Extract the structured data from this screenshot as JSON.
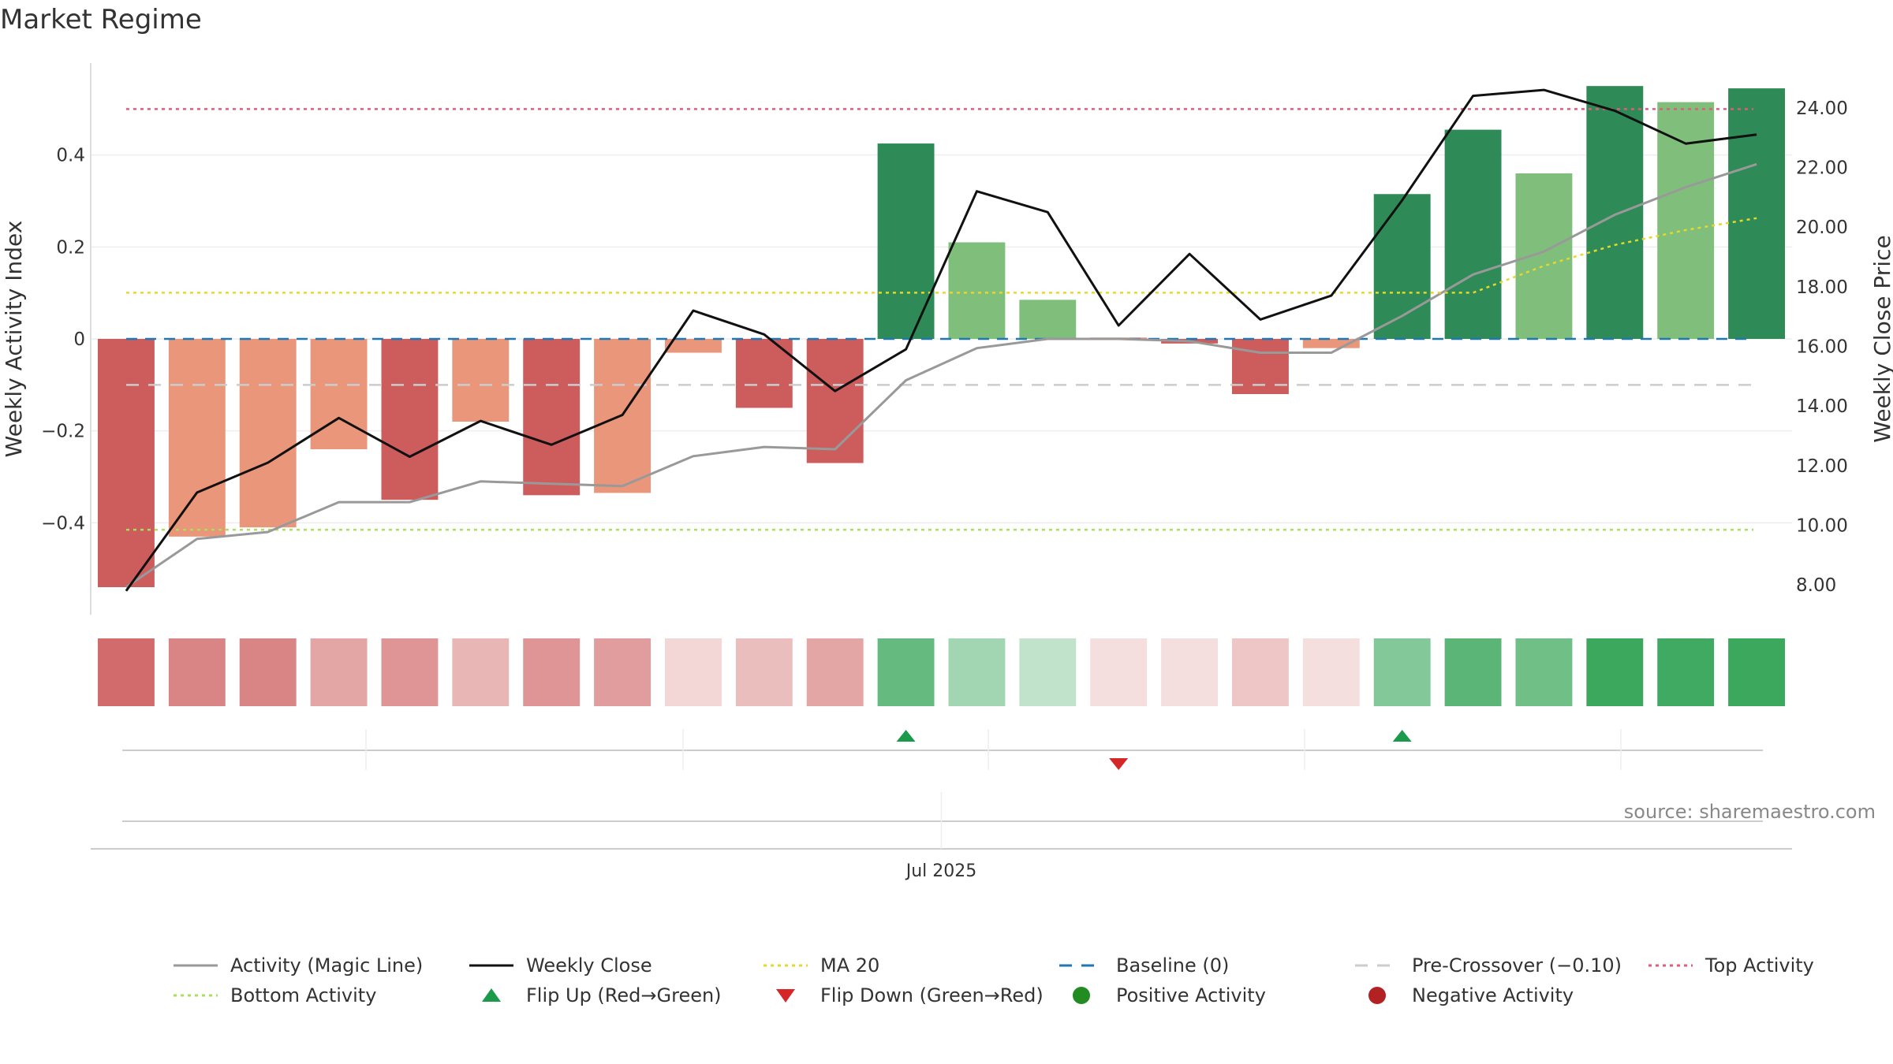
{
  "title": "Market Regime",
  "source": "source: sharemaestro.com",
  "colors": {
    "strong_green": "#2e8b57",
    "light_green": "#7fbf7b",
    "strong_red": "#cd5c5c",
    "light_red": "#e9967a",
    "magic_line": "#999999",
    "weekly_close": "#111111",
    "ma20": "#e6d72a",
    "baseline": "#1f77b4",
    "pre_crossover": "#cccccc",
    "top_activity": "#e05c7a",
    "bottom_activity": "#a8e05c",
    "flip_up": "#1a9a4a",
    "flip_down": "#d62728",
    "positive_activity": "#228b22",
    "negative_activity": "#b22222",
    "strip_green": "#31a354",
    "strip_red": "#cd5c5c"
  },
  "chart_data": {
    "type": "bar",
    "title": "Market Regime",
    "ylabel": "Weekly Activity Index",
    "y2label": "Weekly Close Price",
    "ylim": [
      -0.6,
      0.6
    ],
    "y2lim": [
      7.0,
      25.5
    ],
    "y_ticks": [
      {
        "value": 0.4,
        "label": "0.4"
      },
      {
        "value": 0.2,
        "label": "0.2"
      },
      {
        "value": 0,
        "label": "0"
      },
      {
        "value": -0.2,
        "label": "−0.2"
      },
      {
        "value": -0.4,
        "label": "−0.4"
      }
    ],
    "y2_ticks": [
      {
        "value": 24,
        "label": "24.00"
      },
      {
        "value": 22,
        "label": "22.00"
      },
      {
        "value": 20,
        "label": "20.00"
      },
      {
        "value": 18,
        "label": "18.00"
      },
      {
        "value": 16,
        "label": "16.00"
      },
      {
        "value": 14,
        "label": "14.00"
      },
      {
        "value": 12,
        "label": "12.00"
      },
      {
        "value": 10,
        "label": "10.00"
      },
      {
        "value": 8,
        "label": "8.00"
      }
    ],
    "x_tick_label": "Jul 2025",
    "x_tick_index": 12,
    "bars": [
      {
        "value": -0.54,
        "shade": "strong_red"
      },
      {
        "value": -0.43,
        "shade": "light_red"
      },
      {
        "value": -0.41,
        "shade": "light_red"
      },
      {
        "value": -0.24,
        "shade": "light_red"
      },
      {
        "value": -0.35,
        "shade": "strong_red"
      },
      {
        "value": -0.18,
        "shade": "light_red"
      },
      {
        "value": -0.34,
        "shade": "strong_red"
      },
      {
        "value": -0.335,
        "shade": "light_red"
      },
      {
        "value": -0.03,
        "shade": "light_red"
      },
      {
        "value": -0.15,
        "shade": "strong_red"
      },
      {
        "value": -0.27,
        "shade": "strong_red"
      },
      {
        "value": 0.425,
        "shade": "strong_green"
      },
      {
        "value": 0.21,
        "shade": "light_green"
      },
      {
        "value": 0.085,
        "shade": "light_green"
      },
      {
        "value": 0.003,
        "shade": "light_red"
      },
      {
        "value": -0.01,
        "shade": "strong_red"
      },
      {
        "value": -0.12,
        "shade": "strong_red"
      },
      {
        "value": -0.02,
        "shade": "light_red"
      },
      {
        "value": 0.315,
        "shade": "strong_green"
      },
      {
        "value": 0.455,
        "shade": "strong_green"
      },
      {
        "value": 0.36,
        "shade": "light_green"
      },
      {
        "value": 0.55,
        "shade": "strong_green"
      },
      {
        "value": 0.515,
        "shade": "light_green"
      },
      {
        "value": 0.545,
        "shade": "strong_green"
      }
    ],
    "series": [
      {
        "name": "Activity (Magic Line)",
        "axis": "left",
        "values": [
          -0.54,
          -0.435,
          -0.42,
          -0.355,
          -0.355,
          -0.31,
          -0.315,
          -0.32,
          -0.255,
          -0.235,
          -0.24,
          -0.09,
          -0.02,
          0.0,
          0.0,
          -0.005,
          -0.03,
          -0.03,
          0.05,
          0.14,
          0.19,
          0.27,
          0.33,
          0.38
        ]
      },
      {
        "name": "Weekly Close",
        "axis": "right",
        "values": [
          7.8,
          11.1,
          12.1,
          13.6,
          12.3,
          13.5,
          12.7,
          13.7,
          17.2,
          16.4,
          14.5,
          15.9,
          21.2,
          20.5,
          16.7,
          19.1,
          16.9,
          17.7,
          20.9,
          24.4,
          24.6,
          23.9,
          22.8,
          23.1
        ]
      },
      {
        "name": "MA 20",
        "axis": "right",
        "values": [
          null,
          null,
          null,
          null,
          null,
          null,
          null,
          null,
          null,
          null,
          null,
          null,
          null,
          null,
          null,
          null,
          null,
          null,
          17.8,
          17.8,
          18.7,
          19.4,
          19.9,
          20.3
        ]
      }
    ],
    "reference_lines": [
      {
        "name": "Baseline (0)",
        "value": 0,
        "axis": "left"
      },
      {
        "name": "Pre-Crossover (−0.10)",
        "value": -0.1,
        "axis": "left"
      },
      {
        "name": "Top Activity",
        "value": 0.5,
        "axis": "left"
      },
      {
        "name": "Bottom Activity",
        "value": -0.415,
        "axis": "left"
      },
      {
        "name": "MA 20",
        "value": 17.8,
        "axis": "right",
        "until_index": 18
      }
    ],
    "strip_levels": [
      -0.9,
      -0.75,
      -0.75,
      -0.55,
      -0.65,
      -0.45,
      -0.65,
      -0.6,
      -0.25,
      -0.4,
      -0.55,
      0.75,
      0.45,
      0.3,
      -0.2,
      -0.2,
      -0.35,
      -0.2,
      0.6,
      0.8,
      0.7,
      0.95,
      0.92,
      0.95
    ],
    "flips": [
      {
        "index": 11,
        "direction": "up"
      },
      {
        "index": 14,
        "direction": "down"
      },
      {
        "index": 18,
        "direction": "up"
      }
    ],
    "legend": [
      {
        "label": "Activity (Magic Line)",
        "kind": "line",
        "color_key": "magic_line"
      },
      {
        "label": "Weekly Close",
        "kind": "line",
        "color_key": "weekly_close"
      },
      {
        "label": "MA 20",
        "kind": "dotted",
        "color_key": "ma20"
      },
      {
        "label": "Baseline (0)",
        "kind": "dashed",
        "color_key": "baseline"
      },
      {
        "label": "Pre-Crossover (−0.10)",
        "kind": "dashed",
        "color_key": "pre_crossover"
      },
      {
        "label": "Top Activity",
        "kind": "dotted",
        "color_key": "top_activity"
      },
      {
        "label": "Bottom Activity",
        "kind": "dotted",
        "color_key": "bottom_activity"
      },
      {
        "label": "Flip Up (Red→Green)",
        "kind": "tri-up",
        "color_key": "flip_up"
      },
      {
        "label": "Flip Down (Green→Red)",
        "kind": "tri-down",
        "color_key": "flip_down"
      },
      {
        "label": "Positive Activity",
        "kind": "dot",
        "color_key": "positive_activity"
      },
      {
        "label": "Negative Activity",
        "kind": "dot",
        "color_key": "negative_activity"
      }
    ],
    "legend_position": "bottom"
  }
}
